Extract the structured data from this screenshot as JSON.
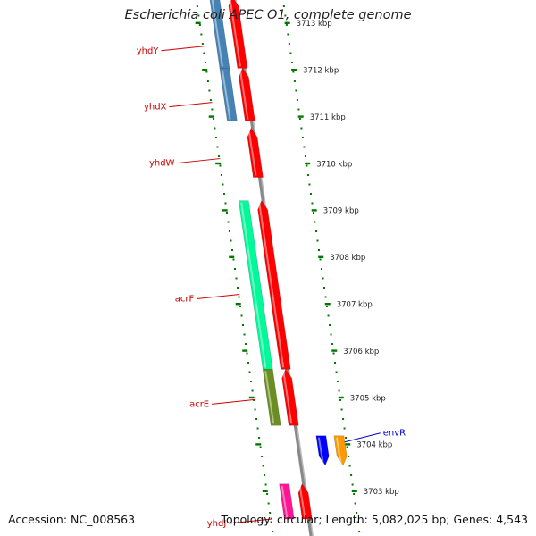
{
  "title": "Escherichia coli APEC O1, complete genome",
  "footer": {
    "accession_label": "Accession:",
    "accession": "NC_008563",
    "topology_label": "Topology:",
    "topology": "circular",
    "length_label": "Length:",
    "length": "5,082,025 bp",
    "genes_label": "Genes:",
    "genes": "4,543"
  },
  "colors": {
    "forward_cds": "#ff0000",
    "gene_label": "#cc0000",
    "other_label": "#0000cc",
    "tick": "#007700",
    "backbone": "#888888"
  },
  "ruler": {
    "ticks": [
      "3713 kbp",
      "3712 kbp",
      "3711 kbp",
      "3710 kbp",
      "3709 kbp",
      "3708 kbp",
      "3707 kbp",
      "3706 kbp",
      "3705 kbp",
      "3704 kbp",
      "3703 kbp"
    ]
  },
  "genes": [
    {
      "label": "yhdY",
      "strand": "reverse",
      "color": "#4682b4",
      "from_kbp": 3713.55,
      "to_kbp": 3712.03,
      "label_kbp": 3712.5
    },
    {
      "label": "yhdX",
      "strand": "reverse",
      "color": "#4682b4",
      "from_kbp": 3712.03,
      "to_kbp": 3710.9,
      "label_kbp": 3711.3
    },
    {
      "label": "yhdW",
      "strand": "forward",
      "color": "#ff0000",
      "from_kbp": 3710.75,
      "to_kbp": 3709.7,
      "label_kbp": 3710.1
    },
    {
      "label": "acrF",
      "strand": "reverse",
      "color": "#00fa9a",
      "from_kbp": 3709.2,
      "to_kbp": 3705.6,
      "label_kbp": 3707.2
    },
    {
      "label": "acrE",
      "strand": "reverse",
      "color": "#6b8e23",
      "from_kbp": 3705.6,
      "to_kbp": 3704.4,
      "label_kbp": 3704.95
    },
    {
      "label": "envR",
      "strand": "other",
      "color": "#0000ff",
      "from_kbp": 3704.18,
      "to_kbp": 3703.55,
      "label_kbp": 3704.2
    },
    {
      "label": "yhdJ",
      "strand": "reverse",
      "color": "#ff1493",
      "from_kbp": 3703.15,
      "to_kbp": 3702.4,
      "label_kbp": 3702.4
    }
  ],
  "forward_cds": [
    {
      "from_kbp": 3713.55,
      "to_kbp": 3712.03
    },
    {
      "from_kbp": 3712.03,
      "to_kbp": 3710.9
    },
    {
      "from_kbp": 3710.75,
      "to_kbp": 3709.7
    },
    {
      "from_kbp": 3709.2,
      "to_kbp": 3705.6
    },
    {
      "from_kbp": 3705.6,
      "to_kbp": 3704.4
    },
    {
      "from_kbp": 3703.15,
      "to_kbp": 3702.4
    }
  ],
  "other_features": [
    {
      "color": "#ff9900",
      "from_kbp": 3704.18,
      "to_kbp": 3703.55
    }
  ]
}
